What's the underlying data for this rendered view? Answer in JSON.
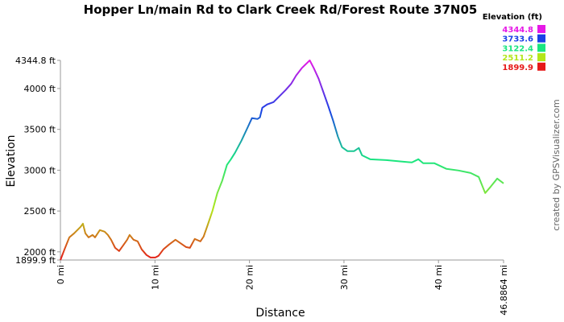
{
  "chart_data": {
    "type": "line",
    "title": "Hopper Ln/main Rd to Clark Creek Rd/Forest Route 37N05",
    "x_label": "Distance",
    "y_label": "Elevation",
    "credit": "created by GPSVisualizer.com",
    "legend_title": "Elevation (ft)",
    "color_scale": [
      {
        "value": 4344.8,
        "color": "#e619e6"
      },
      {
        "value": 3733.6,
        "color": "#1a40e6"
      },
      {
        "value": 3122.4,
        "color": "#19e680"
      },
      {
        "value": 2511.2,
        "color": "#b3e619"
      },
      {
        "value": 1899.9,
        "color": "#e61919"
      }
    ],
    "xlim": [
      0,
      46.8864
    ],
    "ylim": [
      1899.9,
      4344.8
    ],
    "xticks": [
      {
        "value": 0,
        "label": "0 mi"
      },
      {
        "value": 10,
        "label": "10 mi"
      },
      {
        "value": 20,
        "label": "20 mi"
      },
      {
        "value": 30,
        "label": "30 mi"
      },
      {
        "value": 40,
        "label": "40 mi"
      },
      {
        "value": 46.8864,
        "label": "46.8864 mi"
      }
    ],
    "yticks": [
      {
        "value": 1899.9,
        "label": "1899.9 ft"
      },
      {
        "value": 2000,
        "label": "2000 ft"
      },
      {
        "value": 2500,
        "label": "2500 ft"
      },
      {
        "value": 3000,
        "label": "3000 ft"
      },
      {
        "value": 3500,
        "label": "3500 ft"
      },
      {
        "value": 4000,
        "label": "4000 ft"
      },
      {
        "value": 4344.8,
        "label": "4344.8 ft"
      }
    ],
    "x": [
      0,
      0.43,
      0.94,
      1.45,
      2.13,
      2.38,
      2.64,
      2.98,
      3.4,
      3.66,
      4.17,
      4.68,
      5.02,
      5.36,
      5.79,
      6.21,
      6.64,
      7.06,
      7.32,
      7.74,
      8.17,
      8.6,
      9.11,
      9.53,
      10.04,
      10.38,
      10.89,
      11.49,
      12.17,
      12.68,
      13.28,
      13.7,
      14.21,
      14.81,
      15.15,
      15.57,
      16.09,
      16.6,
      17.11,
      17.62,
      18.04,
      18.47,
      19.15,
      19.83,
      20.26,
      20.85,
      21.11,
      21.36,
      21.87,
      22.55,
      23.15,
      23.83,
      24.43,
      24.94,
      25.53,
      25.96,
      26.38,
      26.81,
      27.32,
      27.83,
      28.34,
      28.85,
      29.36,
      29.79,
      30.38,
      31.06,
      31.57,
      31.91,
      32.77,
      34.47,
      36.17,
      37.19,
      37.87,
      38.38,
      39.57,
      40.85,
      42.13,
      43.4,
      44.26,
      44.94,
      45.53,
      46.21,
      46.8864
    ],
    "values": [
      1900,
      2030,
      2177,
      2227,
      2306,
      2345,
      2227,
      2177,
      2207,
      2177,
      2266,
      2247,
      2207,
      2148,
      2049,
      2010,
      2079,
      2148,
      2207,
      2148,
      2128,
      2030,
      1961,
      1931,
      1931,
      1951,
      2030,
      2089,
      2148,
      2108,
      2059,
      2049,
      2158,
      2128,
      2187,
      2325,
      2503,
      2720,
      2868,
      3065,
      3134,
      3213,
      3361,
      3529,
      3637,
      3627,
      3647,
      3765,
      3805,
      3834,
      3903,
      3982,
      4061,
      4160,
      4249,
      4298,
      4344.8,
      4249,
      4120,
      3953,
      3785,
      3607,
      3410,
      3282,
      3233,
      3233,
      3272,
      3183,
      3134,
      3124,
      3105,
      3095,
      3134,
      3085,
      3085,
      3016,
      2996,
      2966,
      2917,
      2720,
      2799,
      2897,
      2838
    ]
  }
}
